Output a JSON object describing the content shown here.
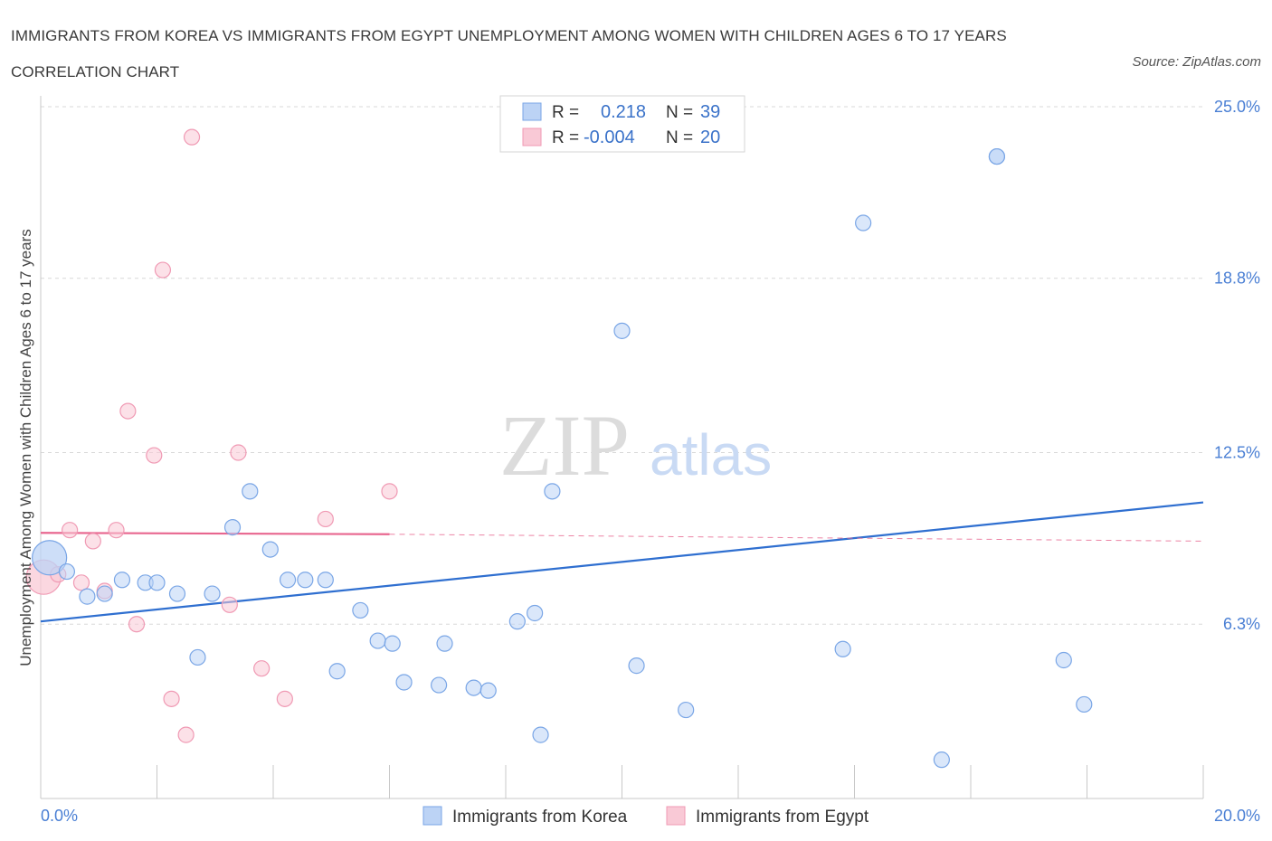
{
  "header": {
    "title": "IMMIGRANTS FROM KOREA VS IMMIGRANTS FROM EGYPT UNEMPLOYMENT AMONG WOMEN WITH CHILDREN AGES 6 TO 17 YEARS CORRELATION CHART",
    "source": "Source: ZipAtlas.com"
  },
  "watermark": {
    "zip": "ZIP",
    "atlas": "atlas"
  },
  "colors": {
    "korea_fill": "#bcd3f5",
    "korea_stroke": "#7aa6e6",
    "korea_line": "#2f6fd0",
    "egypt_fill": "#f9c9d6",
    "egypt_stroke": "#f09ab4",
    "egypt_line": "#e8668f",
    "tick_label": "#4a7fd4",
    "grid": "#d8d8d8"
  },
  "chart_data": {
    "type": "scatter",
    "title": "IMMIGRANTS FROM KOREA VS IMMIGRANTS FROM EGYPT UNEMPLOYMENT AMONG WOMEN WITH CHILDREN AGES 6 TO 17 YEARS CORRELATION CHART",
    "xlabel": "",
    "ylabel": "Unemployment Among Women with Children Ages 6 to 17 years",
    "xlim": [
      0,
      20
    ],
    "ylim": [
      0,
      25
    ],
    "x_tick_labels": [
      {
        "value": 0,
        "label": "0.0%"
      },
      {
        "value": 20,
        "label": "20.0%"
      }
    ],
    "y_tick_labels": [
      {
        "value": 6.3,
        "label": "6.3%"
      },
      {
        "value": 12.5,
        "label": "12.5%"
      },
      {
        "value": 18.8,
        "label": "18.8%"
      },
      {
        "value": 25.0,
        "label": "25.0%"
      }
    ],
    "x_minor_ticks": [
      2,
      4,
      6,
      8,
      10,
      12,
      14,
      16,
      18,
      20
    ],
    "legend": {
      "position": "top-center",
      "rows": [
        {
          "r_label": "R =",
          "r_value": "0.218",
          "n_label": "N =",
          "n_value": "39"
        },
        {
          "r_label": "R =",
          "r_value": "-0.004",
          "n_label": "N =",
          "n_value": "20"
        }
      ]
    },
    "series": [
      {
        "name": "Immigrants from Korea",
        "color": "#bcd3f5",
        "trend": {
          "x0": 0,
          "y0": 6.4,
          "x1": 20,
          "y1": 10.7,
          "style": "solid"
        },
        "points": [
          {
            "x": 0.15,
            "y": 8.7,
            "size": "large"
          },
          {
            "x": 0.45,
            "y": 8.2
          },
          {
            "x": 0.8,
            "y": 7.3
          },
          {
            "x": 1.1,
            "y": 7.4
          },
          {
            "x": 1.4,
            "y": 7.9
          },
          {
            "x": 1.8,
            "y": 7.8
          },
          {
            "x": 2.0,
            "y": 7.8
          },
          {
            "x": 2.35,
            "y": 7.4
          },
          {
            "x": 2.7,
            "y": 5.1
          },
          {
            "x": 2.95,
            "y": 7.4
          },
          {
            "x": 3.3,
            "y": 9.8
          },
          {
            "x": 3.6,
            "y": 11.1
          },
          {
            "x": 3.95,
            "y": 9.0
          },
          {
            "x": 4.25,
            "y": 7.9
          },
          {
            "x": 4.55,
            "y": 7.9
          },
          {
            "x": 4.9,
            "y": 7.9
          },
          {
            "x": 5.1,
            "y": 4.6
          },
          {
            "x": 5.5,
            "y": 6.8
          },
          {
            "x": 5.8,
            "y": 5.7
          },
          {
            "x": 6.05,
            "y": 5.6
          },
          {
            "x": 6.25,
            "y": 4.2
          },
          {
            "x": 6.85,
            "y": 4.1
          },
          {
            "x": 6.95,
            "y": 5.6
          },
          {
            "x": 7.45,
            "y": 4.0
          },
          {
            "x": 7.7,
            "y": 3.9
          },
          {
            "x": 8.2,
            "y": 6.4
          },
          {
            "x": 8.5,
            "y": 6.7
          },
          {
            "x": 8.6,
            "y": 2.3
          },
          {
            "x": 8.8,
            "y": 11.1
          },
          {
            "x": 10.0,
            "y": 16.9
          },
          {
            "x": 10.25,
            "y": 4.8
          },
          {
            "x": 11.1,
            "y": 3.2
          },
          {
            "x": 13.8,
            "y": 5.4
          },
          {
            "x": 14.15,
            "y": 20.8
          },
          {
            "x": 15.5,
            "y": 1.4
          },
          {
            "x": 16.45,
            "y": 23.2
          },
          {
            "x": 16.45,
            "y": 23.2
          },
          {
            "x": 17.6,
            "y": 5.0
          },
          {
            "x": 17.95,
            "y": 3.4
          }
        ]
      },
      {
        "name": "Immigrants from Egypt",
        "color": "#f9c9d6",
        "trend": {
          "x0": 0,
          "y0": 9.6,
          "x1": 6,
          "y1": 9.55,
          "style": "solid",
          "dashed_to_x": 20,
          "dashed_to_y": 9.3
        },
        "points": [
          {
            "x": 0.05,
            "y": 8.0,
            "size": "large"
          },
          {
            "x": 0.3,
            "y": 8.1
          },
          {
            "x": 0.5,
            "y": 9.7
          },
          {
            "x": 0.7,
            "y": 7.8
          },
          {
            "x": 0.9,
            "y": 9.3
          },
          {
            "x": 1.1,
            "y": 7.5
          },
          {
            "x": 1.3,
            "y": 9.7
          },
          {
            "x": 1.5,
            "y": 14.0
          },
          {
            "x": 1.65,
            "y": 6.3
          },
          {
            "x": 1.95,
            "y": 12.4
          },
          {
            "x": 2.1,
            "y": 19.1
          },
          {
            "x": 2.25,
            "y": 3.6
          },
          {
            "x": 2.5,
            "y": 2.3
          },
          {
            "x": 2.6,
            "y": 23.9
          },
          {
            "x": 3.25,
            "y": 7.0
          },
          {
            "x": 3.4,
            "y": 12.5
          },
          {
            "x": 3.8,
            "y": 4.7
          },
          {
            "x": 4.2,
            "y": 3.6
          },
          {
            "x": 4.9,
            "y": 10.1
          },
          {
            "x": 6.0,
            "y": 11.1
          }
        ]
      }
    ]
  }
}
